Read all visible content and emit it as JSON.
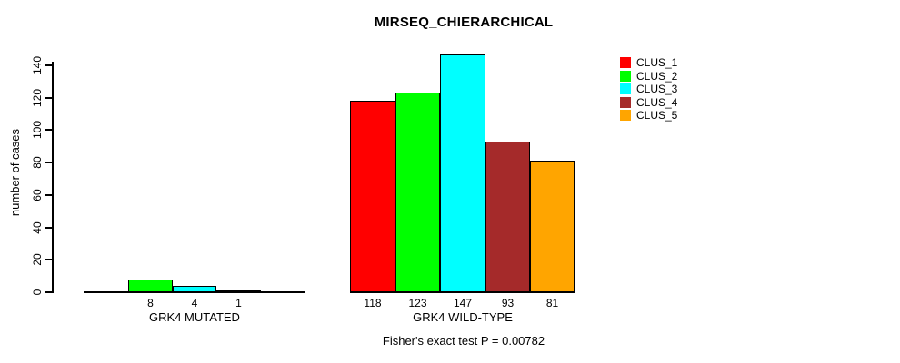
{
  "chart_data": {
    "type": "bar",
    "title": "MIRSEQ_CHIERARCHICAL",
    "ylabel": "number of cases",
    "xlabel": "",
    "groups": [
      "GRK4 MUTATED",
      "GRK4 WILD-TYPE"
    ],
    "series": [
      {
        "name": "CLUS_1",
        "color": "#FF0000",
        "values": [
          0,
          118
        ]
      },
      {
        "name": "CLUS_2",
        "color": "#00FF00",
        "values": [
          8,
          123
        ]
      },
      {
        "name": "CLUS_3",
        "color": "#00FFFF",
        "values": [
          4,
          147
        ]
      },
      {
        "name": "CLUS_4",
        "color": "#A52A2A",
        "values": [
          1,
          93
        ]
      },
      {
        "name": "CLUS_5",
        "color": "#FFA500",
        "values": [
          0,
          81
        ]
      }
    ],
    "bar_labels": [
      [
        null,
        "8",
        "4",
        "1",
        null
      ],
      [
        "118",
        "123",
        "147",
        "93",
        "81"
      ]
    ],
    "yticks": [
      0,
      20,
      40,
      60,
      80,
      100,
      120,
      140
    ],
    "ylim": [
      0,
      147
    ],
    "grid": false,
    "legend_position": "top-right",
    "bar_border_color": "#000000",
    "annotation": "Fisher's exact test P = 0.00782"
  }
}
